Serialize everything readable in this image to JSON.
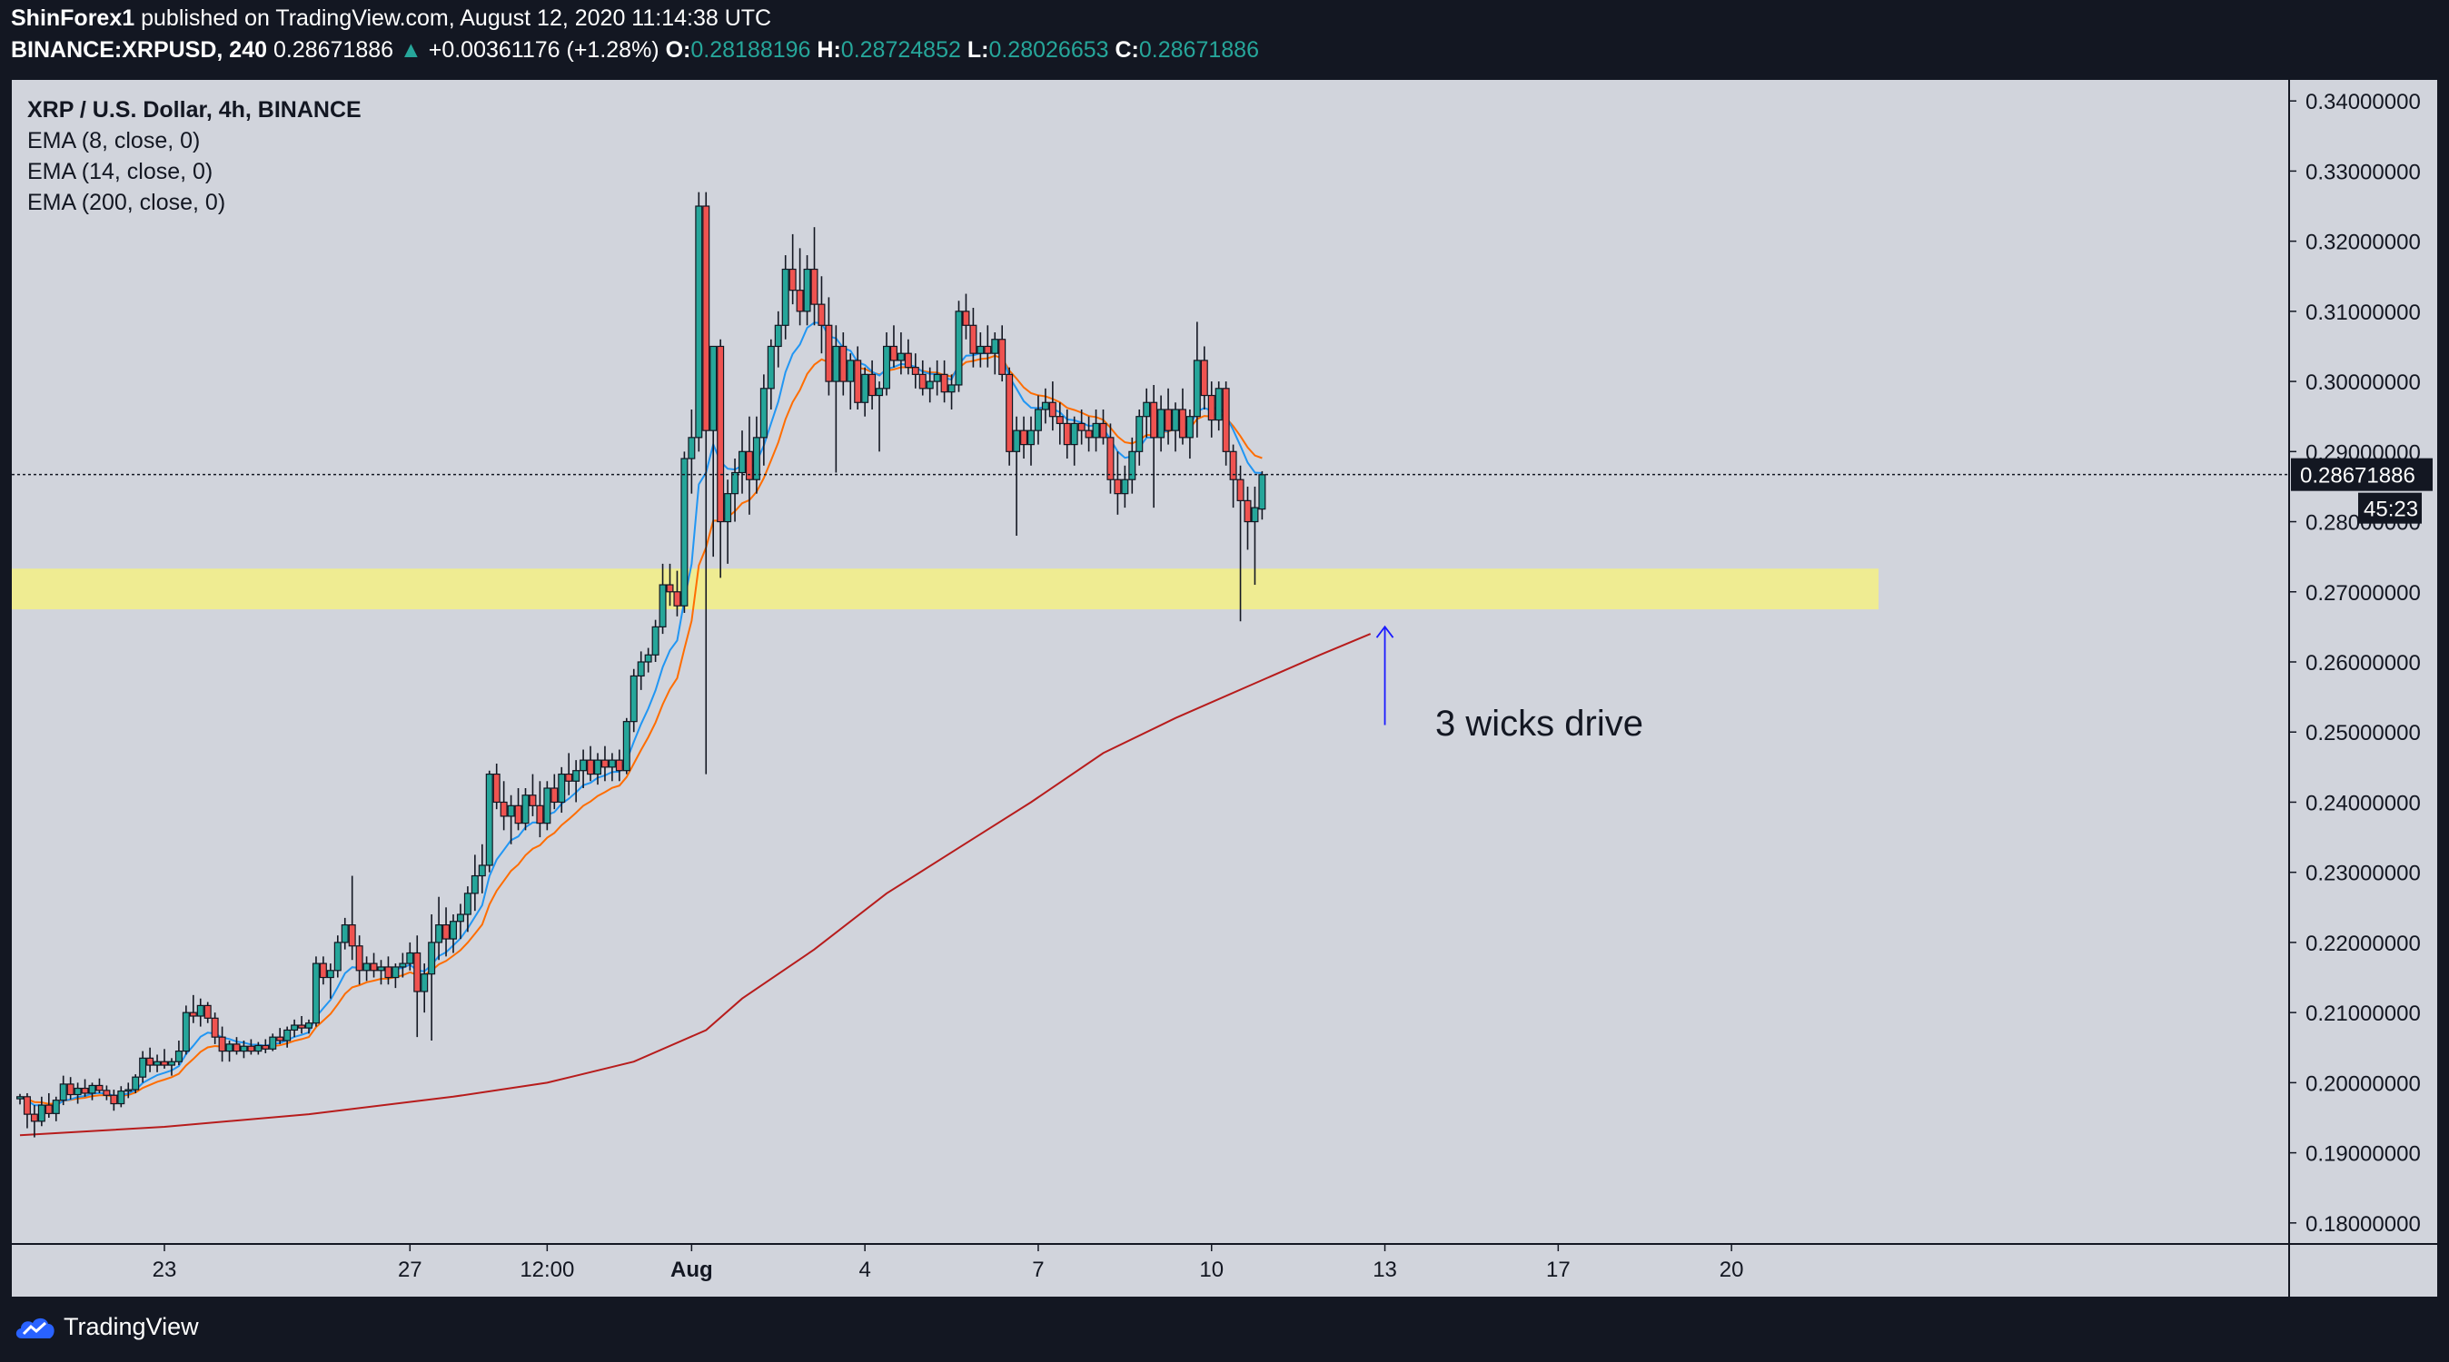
{
  "header": {
    "author": "ShinForex1",
    "published": " published on TradingView.com, August 12, 2020 11:14:38 UTC",
    "symbol": "BINANCE:XRPUSD, 240",
    "last": "0.28671886",
    "change_arrow": "▲",
    "change": "+0.00361176 (+1.28%)",
    "o_label": "O:",
    "o_value": "0.28188196",
    "h_label": "H:",
    "h_value": "0.28724852",
    "l_label": "L:",
    "l_value": "0.28026653",
    "c_label": "C:",
    "c_value": "0.28671886"
  },
  "legend": {
    "title": "XRP / U.S. Dollar, 4h, BINANCE",
    "ema1": "EMA (8, close, 0)",
    "ema2": "EMA (14, close, 0)",
    "ema3": "EMA (200, close, 0)"
  },
  "footer": {
    "brand": "TradingView"
  },
  "colors": {
    "up": "#26a69a",
    "down": "#ef5350",
    "ema8": "#2196f3",
    "ema14": "#ff6d00",
    "ema200": "#b71c1c",
    "zone": "#f2ee8a",
    "arrow": "#1a1aff",
    "background": "#d1d4dc"
  },
  "chart_data": {
    "type": "candlestick",
    "title": "XRP / U.S. Dollar, 4h, BINANCE",
    "ylim": [
      0.177,
      0.343
    ],
    "y_ticks": [
      "0.34000000",
      "0.33000000",
      "0.32000000",
      "0.31000000",
      "0.30000000",
      "0.29000000",
      "0.28000000",
      "0.27000000",
      "0.26000000",
      "0.25000000",
      "0.24000000",
      "0.23000000",
      "0.22000000",
      "0.21000000",
      "0.20000000",
      "0.19000000",
      "0.18000000"
    ],
    "y_tick_values": [
      0.34,
      0.33,
      0.32,
      0.31,
      0.3,
      0.29,
      0.28,
      0.27,
      0.26,
      0.25,
      0.24,
      0.23,
      0.22,
      0.21,
      0.2,
      0.19,
      0.18
    ],
    "x_ticks": [
      "23",
      "27",
      "12:00",
      "Aug",
      "4",
      "7",
      "10",
      "13",
      "17",
      "20"
    ],
    "x_tick_bars": [
      20,
      54,
      73,
      93,
      117,
      141,
      165,
      189,
      213,
      237
    ],
    "x_tick_bold": [
      false,
      false,
      false,
      true,
      false,
      false,
      false,
      false,
      false,
      false
    ],
    "bars_total": 253,
    "last_price_label": "0.28671886",
    "countdown_label": "45:23",
    "current_price": 0.28671886,
    "support_zone": [
      0.2675,
      0.2733
    ],
    "annotation": "3 wicks drive",
    "annotation_point": 0.2658,
    "candles_ohlc": [
      [
        0.1977,
        0.1984,
        0.1969,
        0.198
      ],
      [
        0.198,
        0.1985,
        0.1935,
        0.1955
      ],
      [
        0.1955,
        0.1968,
        0.1922,
        0.1945
      ],
      [
        0.1945,
        0.198,
        0.1938,
        0.1968
      ],
      [
        0.1968,
        0.1985,
        0.195,
        0.1956
      ],
      [
        0.1956,
        0.198,
        0.1945,
        0.1975
      ],
      [
        0.1975,
        0.201,
        0.1968,
        0.1998
      ],
      [
        0.1998,
        0.2008,
        0.1976,
        0.1983
      ],
      [
        0.1983,
        0.2,
        0.197,
        0.1992
      ],
      [
        0.1992,
        0.2005,
        0.198,
        0.1985
      ],
      [
        0.1985,
        0.2,
        0.1975,
        0.1996
      ],
      [
        0.1996,
        0.2006,
        0.1985,
        0.1989
      ],
      [
        0.1989,
        0.1996,
        0.1975,
        0.1982
      ],
      [
        0.1982,
        0.199,
        0.196,
        0.197
      ],
      [
        0.197,
        0.1995,
        0.1965,
        0.1988
      ],
      [
        0.1988,
        0.2,
        0.1978,
        0.199
      ],
      [
        0.199,
        0.2012,
        0.1985,
        0.2008
      ],
      [
        0.2008,
        0.2045,
        0.2,
        0.2035
      ],
      [
        0.2035,
        0.205,
        0.2015,
        0.2025
      ],
      [
        0.2025,
        0.204,
        0.2015,
        0.203
      ],
      [
        0.203,
        0.2048,
        0.202,
        0.2025
      ],
      [
        0.2025,
        0.2035,
        0.201,
        0.203
      ],
      [
        0.203,
        0.206,
        0.2025,
        0.2045
      ],
      [
        0.2045,
        0.211,
        0.204,
        0.21
      ],
      [
        0.21,
        0.2125,
        0.2085,
        0.2095
      ],
      [
        0.2095,
        0.212,
        0.208,
        0.211
      ],
      [
        0.211,
        0.2115,
        0.2085,
        0.2092
      ],
      [
        0.2092,
        0.21,
        0.2055,
        0.2065
      ],
      [
        0.2065,
        0.208,
        0.203,
        0.2045
      ],
      [
        0.2045,
        0.206,
        0.203,
        0.2055
      ],
      [
        0.2055,
        0.2065,
        0.204,
        0.2045
      ],
      [
        0.2045,
        0.206,
        0.2035,
        0.2052
      ],
      [
        0.2052,
        0.2062,
        0.204,
        0.2045
      ],
      [
        0.2045,
        0.2058,
        0.204,
        0.2053
      ],
      [
        0.2053,
        0.2062,
        0.2042,
        0.2048
      ],
      [
        0.2048,
        0.207,
        0.2045,
        0.2065
      ],
      [
        0.2065,
        0.2078,
        0.2055,
        0.206
      ],
      [
        0.206,
        0.208,
        0.205,
        0.2075
      ],
      [
        0.2075,
        0.209,
        0.2065,
        0.2082
      ],
      [
        0.2082,
        0.2095,
        0.207,
        0.2078
      ],
      [
        0.2078,
        0.209,
        0.207,
        0.2085
      ],
      [
        0.2085,
        0.218,
        0.208,
        0.217
      ],
      [
        0.217,
        0.218,
        0.214,
        0.215
      ],
      [
        0.215,
        0.217,
        0.212,
        0.216
      ],
      [
        0.216,
        0.221,
        0.215,
        0.22
      ],
      [
        0.22,
        0.2235,
        0.219,
        0.2225
      ],
      [
        0.2225,
        0.2295,
        0.2175,
        0.2195
      ],
      [
        0.2195,
        0.221,
        0.214,
        0.216
      ],
      [
        0.216,
        0.218,
        0.2145,
        0.217
      ],
      [
        0.217,
        0.2185,
        0.215,
        0.216
      ],
      [
        0.216,
        0.2175,
        0.214,
        0.2165
      ],
      [
        0.2165,
        0.218,
        0.214,
        0.215
      ],
      [
        0.215,
        0.217,
        0.2135,
        0.2165
      ],
      [
        0.2165,
        0.2185,
        0.215,
        0.217
      ],
      [
        0.217,
        0.22,
        0.216,
        0.2185
      ],
      [
        0.2185,
        0.221,
        0.2065,
        0.213
      ],
      [
        0.213,
        0.217,
        0.21,
        0.2155
      ],
      [
        0.2155,
        0.224,
        0.206,
        0.22
      ],
      [
        0.22,
        0.2265,
        0.2175,
        0.2225
      ],
      [
        0.2225,
        0.225,
        0.218,
        0.2205
      ],
      [
        0.2205,
        0.224,
        0.2185,
        0.223
      ],
      [
        0.223,
        0.2255,
        0.2205,
        0.224
      ],
      [
        0.224,
        0.228,
        0.2215,
        0.227
      ],
      [
        0.227,
        0.2325,
        0.2245,
        0.2295
      ],
      [
        0.2295,
        0.234,
        0.227,
        0.231
      ],
      [
        0.231,
        0.2445,
        0.23,
        0.244
      ],
      [
        0.244,
        0.2455,
        0.239,
        0.24
      ],
      [
        0.24,
        0.243,
        0.236,
        0.238
      ],
      [
        0.238,
        0.241,
        0.234,
        0.2395
      ],
      [
        0.2395,
        0.242,
        0.236,
        0.237
      ],
      [
        0.237,
        0.242,
        0.236,
        0.241
      ],
      [
        0.241,
        0.244,
        0.238,
        0.2395
      ],
      [
        0.2395,
        0.243,
        0.235,
        0.237
      ],
      [
        0.237,
        0.243,
        0.236,
        0.242
      ],
      [
        0.242,
        0.244,
        0.239,
        0.24
      ],
      [
        0.24,
        0.245,
        0.2385,
        0.244
      ],
      [
        0.244,
        0.247,
        0.241,
        0.243
      ],
      [
        0.243,
        0.246,
        0.24,
        0.2445
      ],
      [
        0.2445,
        0.2475,
        0.242,
        0.246
      ],
      [
        0.246,
        0.248,
        0.243,
        0.244
      ],
      [
        0.244,
        0.247,
        0.2425,
        0.246
      ],
      [
        0.246,
        0.248,
        0.243,
        0.245
      ],
      [
        0.245,
        0.247,
        0.243,
        0.246
      ],
      [
        0.246,
        0.2475,
        0.243,
        0.2445
      ],
      [
        0.2445,
        0.252,
        0.244,
        0.2515
      ],
      [
        0.2515,
        0.259,
        0.25,
        0.258
      ],
      [
        0.258,
        0.2615,
        0.256,
        0.26
      ],
      [
        0.26,
        0.262,
        0.2585,
        0.261
      ],
      [
        0.261,
        0.266,
        0.26,
        0.265
      ],
      [
        0.265,
        0.274,
        0.264,
        0.271
      ],
      [
        0.271,
        0.274,
        0.268,
        0.27
      ],
      [
        0.27,
        0.273,
        0.2665,
        0.268
      ],
      [
        0.268,
        0.29,
        0.267,
        0.289
      ],
      [
        0.289,
        0.296,
        0.284,
        0.292
      ],
      [
        0.292,
        0.327,
        0.29,
        0.325
      ],
      [
        0.325,
        0.327,
        0.244,
        0.293
      ],
      [
        0.293,
        0.304,
        0.275,
        0.305
      ],
      [
        0.305,
        0.306,
        0.272,
        0.28
      ],
      [
        0.28,
        0.286,
        0.274,
        0.284
      ],
      [
        0.284,
        0.289,
        0.28,
        0.287
      ],
      [
        0.287,
        0.293,
        0.284,
        0.29
      ],
      [
        0.29,
        0.295,
        0.281,
        0.286
      ],
      [
        0.286,
        0.295,
        0.284,
        0.292
      ],
      [
        0.292,
        0.301,
        0.288,
        0.299
      ],
      [
        0.299,
        0.306,
        0.296,
        0.305
      ],
      [
        0.305,
        0.31,
        0.302,
        0.308
      ],
      [
        0.308,
        0.318,
        0.306,
        0.316
      ],
      [
        0.316,
        0.321,
        0.311,
        0.313
      ],
      [
        0.313,
        0.319,
        0.308,
        0.31
      ],
      [
        0.31,
        0.318,
        0.308,
        0.316
      ],
      [
        0.316,
        0.322,
        0.308,
        0.311
      ],
      [
        0.311,
        0.315,
        0.304,
        0.308
      ],
      [
        0.308,
        0.312,
        0.298,
        0.3
      ],
      [
        0.3,
        0.308,
        0.287,
        0.305
      ],
      [
        0.305,
        0.307,
        0.298,
        0.3
      ],
      [
        0.3,
        0.304,
        0.296,
        0.303
      ],
      [
        0.303,
        0.305,
        0.296,
        0.297
      ],
      [
        0.297,
        0.302,
        0.295,
        0.301
      ],
      [
        0.301,
        0.303,
        0.296,
        0.298
      ],
      [
        0.298,
        0.3,
        0.29,
        0.299
      ],
      [
        0.299,
        0.307,
        0.298,
        0.305
      ],
      [
        0.305,
        0.308,
        0.302,
        0.303
      ],
      [
        0.303,
        0.307,
        0.301,
        0.304
      ],
      [
        0.304,
        0.306,
        0.301,
        0.302
      ],
      [
        0.302,
        0.304,
        0.299,
        0.301
      ],
      [
        0.301,
        0.303,
        0.298,
        0.299
      ],
      [
        0.299,
        0.302,
        0.297,
        0.3
      ],
      [
        0.3,
        0.303,
        0.298,
        0.301
      ],
      [
        0.301,
        0.303,
        0.297,
        0.2985
      ],
      [
        0.2985,
        0.301,
        0.296,
        0.2995
      ],
      [
        0.2995,
        0.3115,
        0.2985,
        0.31
      ],
      [
        0.31,
        0.3125,
        0.306,
        0.308
      ],
      [
        0.308,
        0.3105,
        0.302,
        0.304
      ],
      [
        0.304,
        0.307,
        0.302,
        0.305
      ],
      [
        0.305,
        0.308,
        0.302,
        0.304
      ],
      [
        0.304,
        0.307,
        0.301,
        0.306
      ],
      [
        0.306,
        0.308,
        0.3,
        0.301
      ],
      [
        0.301,
        0.302,
        0.288,
        0.29
      ],
      [
        0.29,
        0.295,
        0.278,
        0.293
      ],
      [
        0.293,
        0.295,
        0.289,
        0.291
      ],
      [
        0.291,
        0.295,
        0.288,
        0.293
      ],
      [
        0.293,
        0.298,
        0.291,
        0.296
      ],
      [
        0.296,
        0.299,
        0.294,
        0.297
      ],
      [
        0.297,
        0.3,
        0.293,
        0.295
      ],
      [
        0.295,
        0.297,
        0.291,
        0.294
      ],
      [
        0.294,
        0.296,
        0.289,
        0.291
      ],
      [
        0.291,
        0.295,
        0.288,
        0.294
      ],
      [
        0.294,
        0.296,
        0.291,
        0.293
      ],
      [
        0.293,
        0.295,
        0.29,
        0.292
      ],
      [
        0.292,
        0.296,
        0.29,
        0.294
      ],
      [
        0.294,
        0.296,
        0.291,
        0.292
      ],
      [
        0.292,
        0.294,
        0.284,
        0.286
      ],
      [
        0.286,
        0.29,
        0.281,
        0.284
      ],
      [
        0.284,
        0.288,
        0.282,
        0.286
      ],
      [
        0.286,
        0.292,
        0.284,
        0.29
      ],
      [
        0.29,
        0.296,
        0.288,
        0.295
      ],
      [
        0.295,
        0.299,
        0.292,
        0.297
      ],
      [
        0.297,
        0.2995,
        0.282,
        0.292
      ],
      [
        0.292,
        0.298,
        0.29,
        0.296
      ],
      [
        0.296,
        0.299,
        0.291,
        0.293
      ],
      [
        0.293,
        0.297,
        0.29,
        0.296
      ],
      [
        0.296,
        0.299,
        0.291,
        0.292
      ],
      [
        0.292,
        0.296,
        0.289,
        0.295
      ],
      [
        0.295,
        0.3085,
        0.292,
        0.303
      ],
      [
        0.303,
        0.305,
        0.296,
        0.298
      ],
      [
        0.298,
        0.3,
        0.292,
        0.2945
      ],
      [
        0.2945,
        0.3,
        0.293,
        0.299
      ],
      [
        0.299,
        0.3,
        0.288,
        0.29
      ],
      [
        0.29,
        0.291,
        0.282,
        0.286
      ],
      [
        0.286,
        0.288,
        0.2658,
        0.283
      ],
      [
        0.283,
        0.285,
        0.276,
        0.28
      ],
      [
        0.28,
        0.285,
        0.271,
        0.282
      ],
      [
        0.2818,
        0.2872,
        0.2803,
        0.2867
      ]
    ],
    "ema_fast_label": "EMA (8, close, 0)",
    "ema_mid_label": "EMA (14, close, 0)",
    "ema_slow_label": "EMA (200, close, 0)",
    "ema200_points": [
      [
        0,
        0.1925
      ],
      [
        20,
        0.1937
      ],
      [
        40,
        0.1955
      ],
      [
        60,
        0.198
      ],
      [
        73,
        0.2
      ],
      [
        85,
        0.203
      ],
      [
        95,
        0.2075
      ],
      [
        100,
        0.212
      ],
      [
        110,
        0.219
      ],
      [
        120,
        0.227
      ],
      [
        130,
        0.2335
      ],
      [
        140,
        0.24
      ],
      [
        150,
        0.247
      ],
      [
        160,
        0.252
      ],
      [
        170,
        0.2565
      ],
      [
        180,
        0.261
      ],
      [
        187,
        0.264
      ]
    ]
  }
}
